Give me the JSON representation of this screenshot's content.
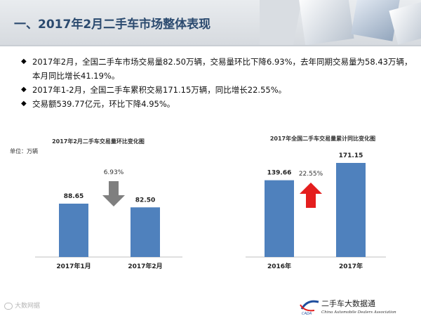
{
  "header": {
    "title": "一、2017年2月二手车市场整体表现"
  },
  "bullets": [
    "2017年2月，全国二手车市场交易量82.50万辆，交易量环比下降6.93%，去年同期交易量为58.43万辆，本月同比增长41.19%。",
    "2017年1-2月，全国二手车累积交易171.15万辆，同比增长22.55%。",
    "交易额539.77亿元，环比下降4.95%。"
  ],
  "chart_data": [
    {
      "type": "bar",
      "title": "2017年2月二手车交易量环比变化图",
      "unit_label": "单位：万辆",
      "categories": [
        "2017年1月",
        "2017年2月"
      ],
      "values": [
        88.65,
        82.5
      ],
      "value_labels": [
        "88.65",
        "82.50"
      ],
      "change_label": "6.93%",
      "change_direction": "down",
      "bar_color": "#4f81bd",
      "arrow_color": "#7f7f7f"
    },
    {
      "type": "bar",
      "title": "2017年全国二手车交易量累计同比变化图",
      "categories": [
        "2016年",
        "2017年"
      ],
      "values": [
        139.66,
        171.15
      ],
      "value_labels": [
        "139.66",
        "171.15"
      ],
      "change_label": "22.55%",
      "change_direction": "up",
      "bar_color": "#4f81bd",
      "arrow_color": "#e41e1e"
    }
  ],
  "footer": {
    "left_watermark": "大数网据",
    "right_logo_text": "二手车大数据通",
    "right_logo_sub": "China Automobile Dealers Association",
    "right_logo_abbr": "CADA"
  }
}
